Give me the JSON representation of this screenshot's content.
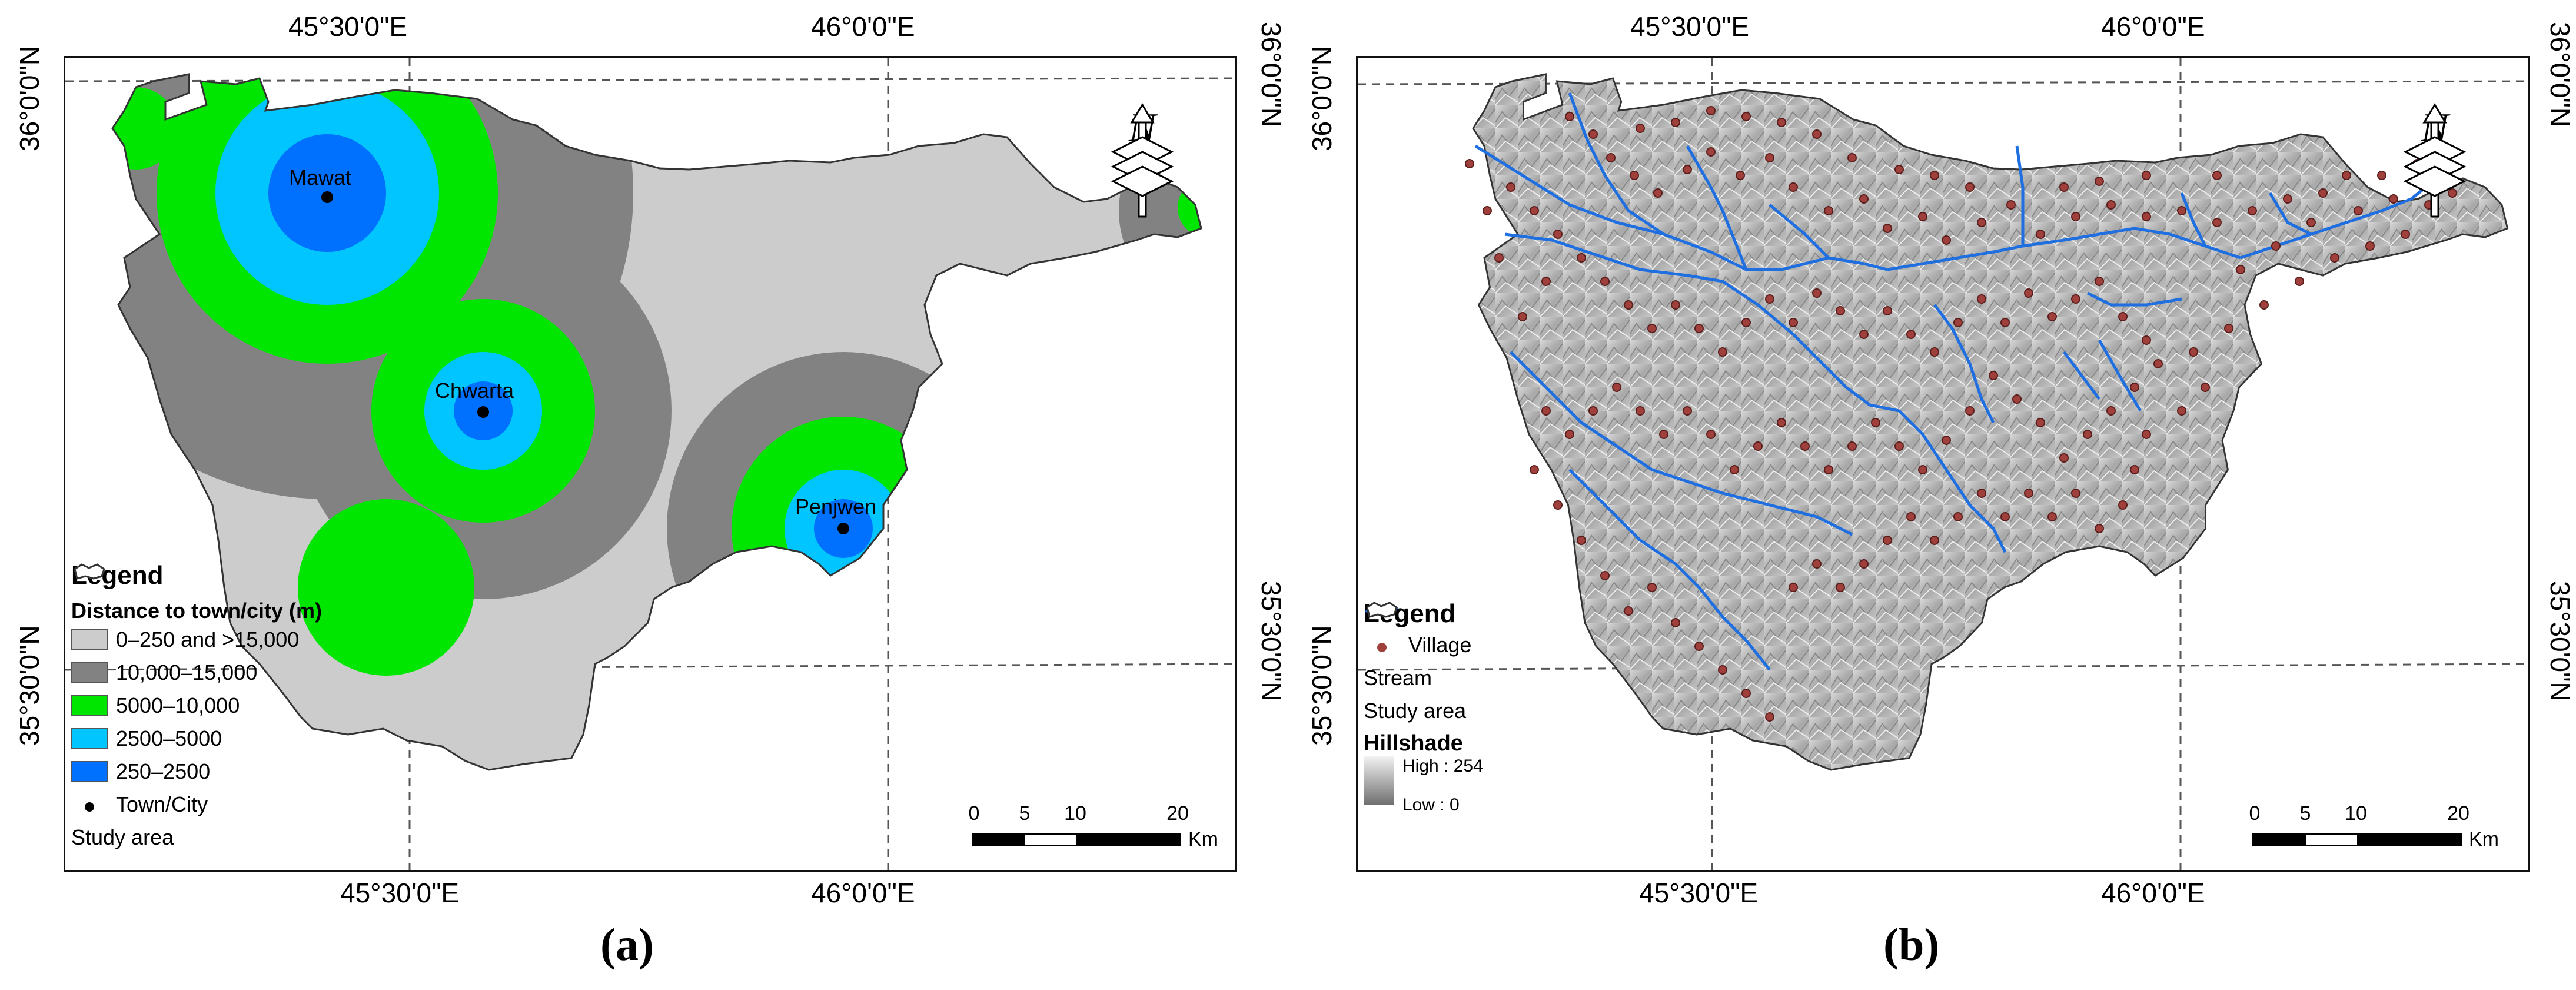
{
  "panel_a": {
    "label": "(a)",
    "top_coords": [
      "45°30'0\"E",
      "46°0'0\"E"
    ],
    "bottom_coords": [
      "45°30'0\"E",
      "46°0'0\"E"
    ],
    "left_coords": [
      "36°0'0\"N",
      "35°30'0\"N"
    ],
    "right_coords": [
      "36°0'0\"N",
      "35°30'0\"N"
    ],
    "towns": [
      "Mawat",
      "Chwarta",
      "Penjwen"
    ],
    "legend": {
      "title": "Legend",
      "subtitle": "Distance to town/city (m)",
      "items": [
        {
          "label": "0–250 and >15,000",
          "color": "#cccccc"
        },
        {
          "label": "10,000–15,000",
          "color": "#828282"
        },
        {
          "label": "5000–10,000",
          "color": "#00e600"
        },
        {
          "label": "2500–5000",
          "color": "#00c5ff"
        },
        {
          "label": "250–2500",
          "color": "#0070ff"
        }
      ],
      "town_label": "Town/City",
      "study_label": "Study area"
    },
    "scale": {
      "ticks": [
        "0",
        "5",
        "10",
        "20"
      ],
      "unit": "Km"
    },
    "north": "N"
  },
  "panel_b": {
    "label": "(b)",
    "top_coords": [
      "45°30'0\"E",
      "46°0'0\"E"
    ],
    "bottom_coords": [
      "45°30'0\"E",
      "46°0'0\"E"
    ],
    "left_coords": [
      "36°0'0\"N",
      "35°30'0\"N"
    ],
    "right_coords": [
      "36°0'0\"N",
      "35°30'0\"N"
    ],
    "legend": {
      "title": "Legend",
      "village_label": "Village",
      "stream_label": "Stream",
      "study_label": "Study area",
      "hillshade_title": "Hillshade",
      "high_label": "High : 254",
      "low_label": "Low : 0"
    },
    "scale": {
      "ticks": [
        "0",
        "5",
        "10",
        "20"
      ],
      "unit": "Km"
    },
    "north": "N",
    "colors": {
      "village": "#a0403c",
      "stream": "#1f6fe0",
      "hillshade": "#bdbdbd"
    }
  }
}
